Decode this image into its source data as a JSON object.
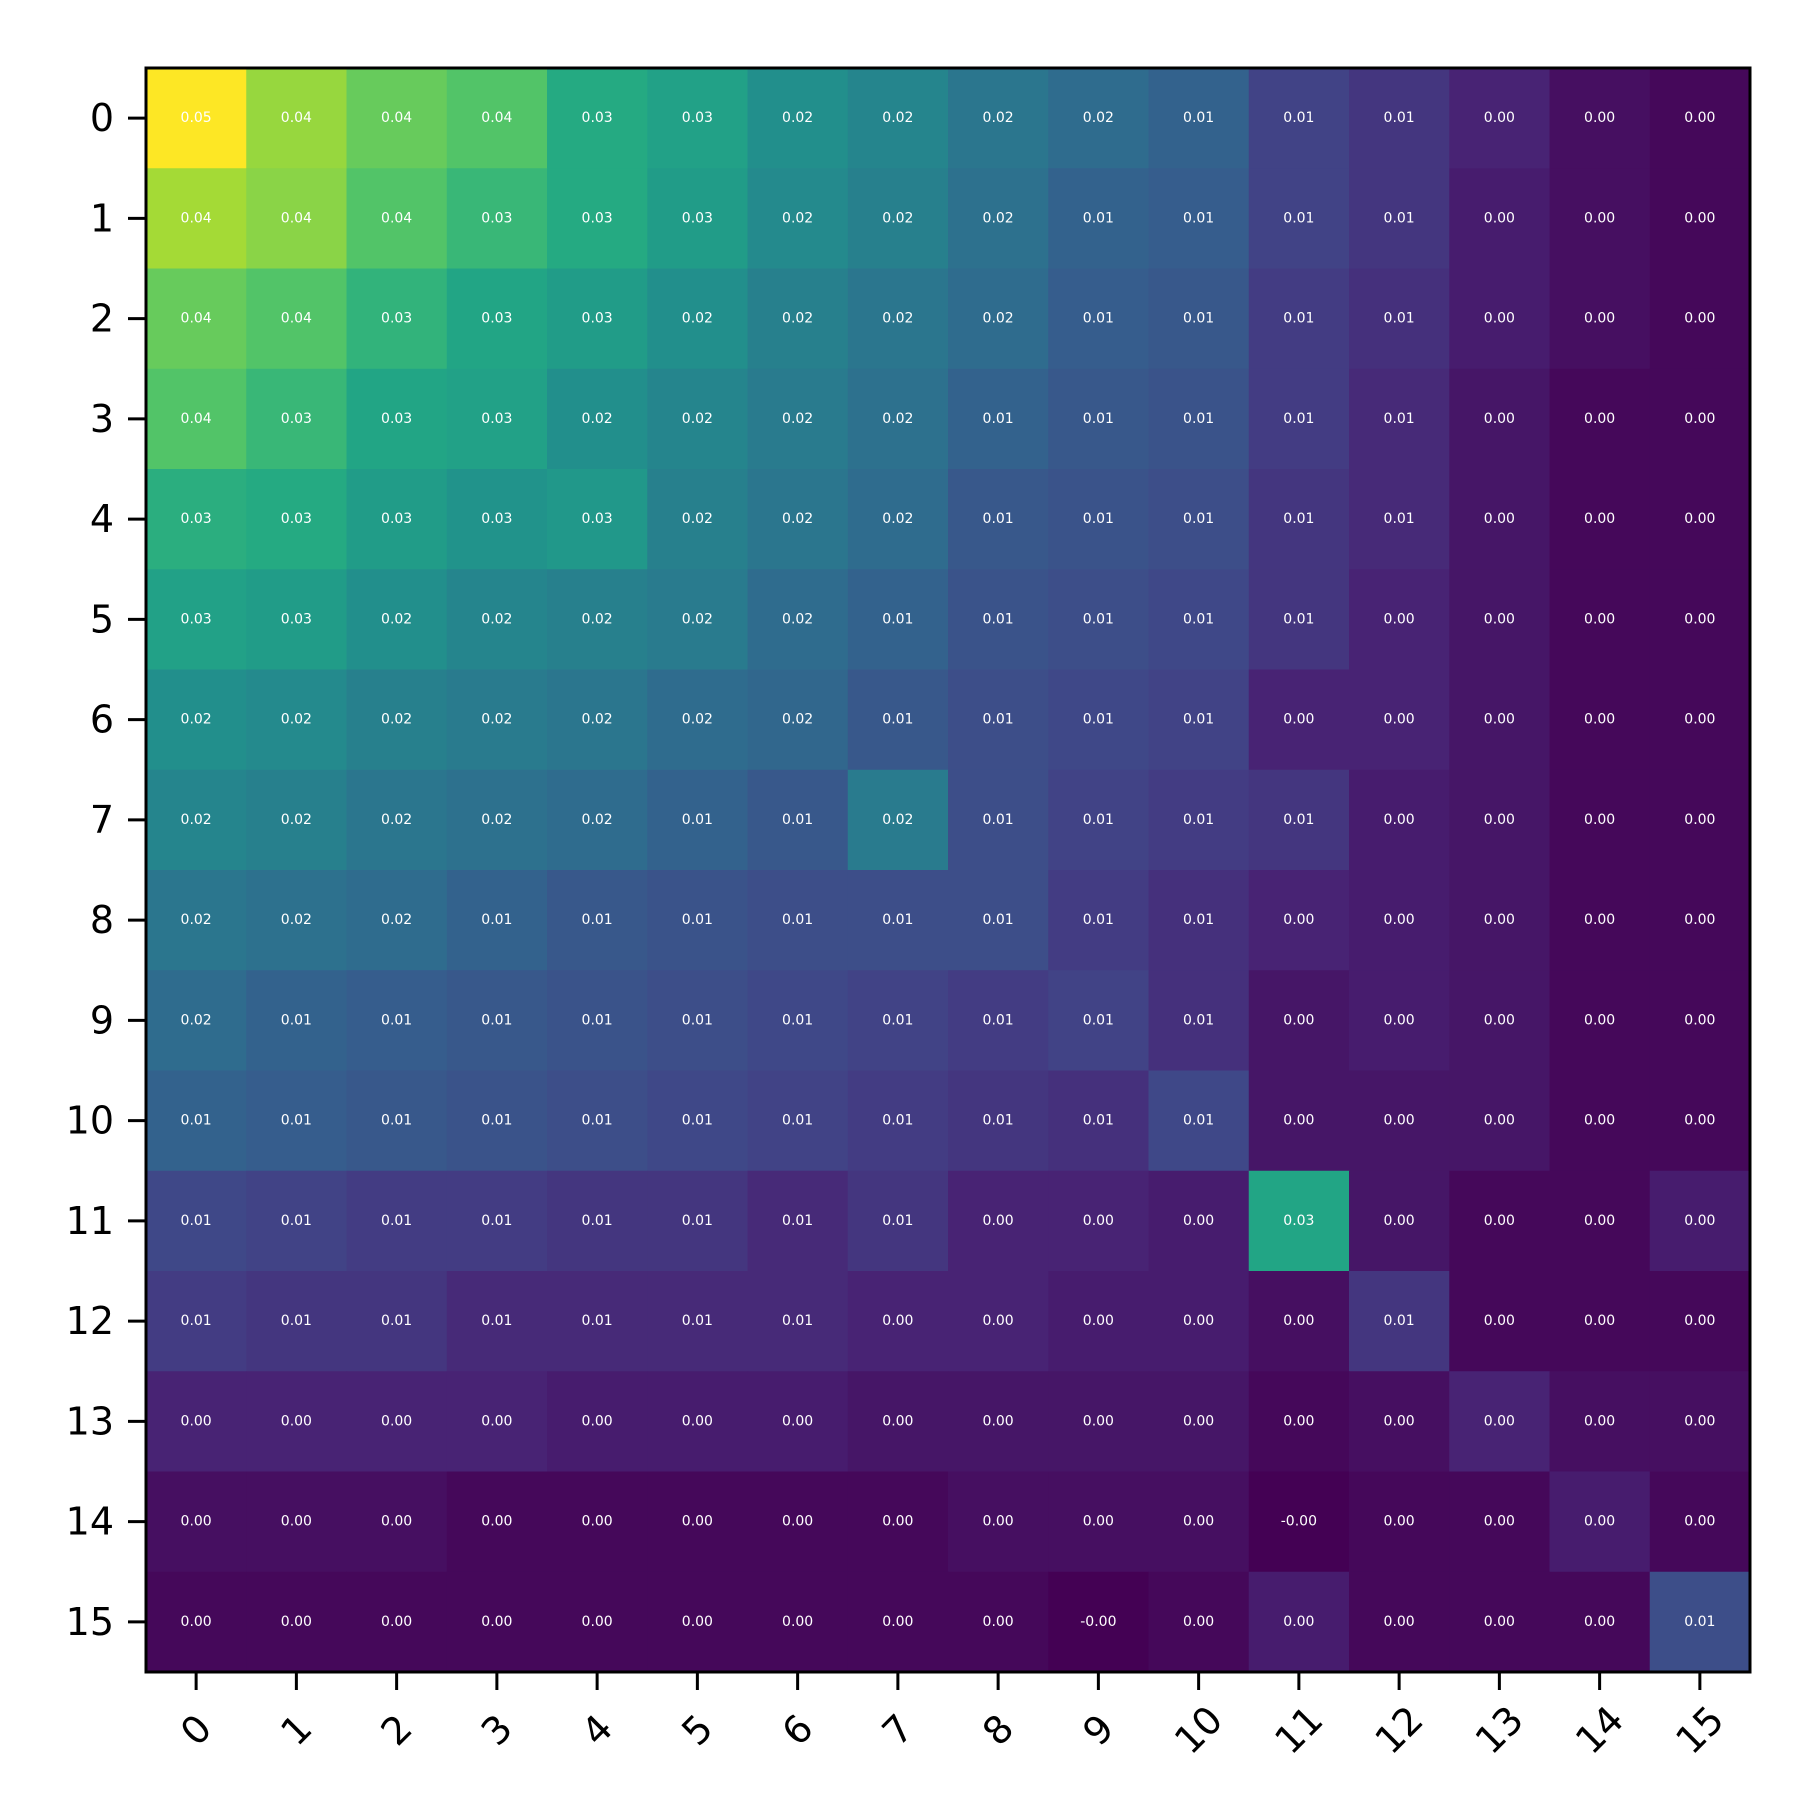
{
  "chart_data": {
    "type": "heatmap",
    "title": "",
    "xlabel": "",
    "ylabel": "",
    "colormap": "viridis",
    "color_range": [
      -0.001,
      0.05
    ],
    "colorbar": false,
    "grid": false,
    "x_labels": [
      "0",
      "1",
      "2",
      "3",
      "4",
      "5",
      "6",
      "7",
      "8",
      "9",
      "10",
      "11",
      "12",
      "13",
      "14",
      "15"
    ],
    "y_labels": [
      "0",
      "1",
      "2",
      "3",
      "4",
      "5",
      "6",
      "7",
      "8",
      "9",
      "10",
      "11",
      "12",
      "13",
      "14",
      "15"
    ],
    "values": [
      [
        0.05,
        0.042,
        0.038,
        0.036,
        0.03,
        0.028,
        0.024,
        0.022,
        0.019,
        0.017,
        0.015,
        0.009,
        0.007,
        0.004,
        0.001,
        -0.0
      ],
      [
        0.043,
        0.041,
        0.036,
        0.033,
        0.03,
        0.027,
        0.023,
        0.021,
        0.018,
        0.015,
        0.014,
        0.009,
        0.007,
        0.003,
        0.001,
        -0.0
      ],
      [
        0.038,
        0.036,
        0.032,
        0.029,
        0.027,
        0.024,
        0.021,
        0.019,
        0.017,
        0.014,
        0.013,
        0.008,
        0.006,
        0.003,
        0.001,
        -0.0
      ],
      [
        0.036,
        0.033,
        0.029,
        0.028,
        0.024,
        0.022,
        0.02,
        0.018,
        0.015,
        0.013,
        0.012,
        0.008,
        0.005,
        0.002,
        0.0,
        -0.0
      ],
      [
        0.031,
        0.03,
        0.027,
        0.025,
        0.026,
        0.021,
        0.019,
        0.017,
        0.013,
        0.012,
        0.011,
        0.007,
        0.005,
        0.002,
        0.0,
        -0.0
      ],
      [
        0.028,
        0.027,
        0.024,
        0.022,
        0.021,
        0.02,
        0.017,
        0.015,
        0.012,
        0.011,
        0.01,
        0.007,
        0.004,
        0.002,
        0.0,
        -0.0
      ],
      [
        0.024,
        0.023,
        0.021,
        0.02,
        0.019,
        0.017,
        0.016,
        0.013,
        0.011,
        0.01,
        0.009,
        0.004,
        0.004,
        0.002,
        0.0,
        -0.0
      ],
      [
        0.022,
        0.021,
        0.019,
        0.018,
        0.017,
        0.015,
        0.013,
        0.02,
        0.011,
        0.009,
        0.008,
        0.007,
        0.003,
        0.002,
        0.0,
        -0.0
      ],
      [
        0.019,
        0.018,
        0.017,
        0.015,
        0.013,
        0.012,
        0.011,
        0.011,
        0.011,
        0.008,
        0.006,
        0.004,
        0.003,
        0.002,
        0.0,
        -0.0
      ],
      [
        0.017,
        0.015,
        0.014,
        0.013,
        0.012,
        0.011,
        0.01,
        0.009,
        0.008,
        0.009,
        0.006,
        0.002,
        0.003,
        0.002,
        0.0,
        -0.0
      ],
      [
        0.015,
        0.014,
        0.013,
        0.012,
        0.011,
        0.01,
        0.009,
        0.008,
        0.007,
        0.006,
        0.01,
        0.002,
        0.002,
        0.002,
        0.0,
        -0.0
      ],
      [
        0.01,
        0.009,
        0.008,
        0.008,
        0.007,
        0.007,
        0.005,
        0.007,
        0.004,
        0.004,
        0.003,
        0.029,
        0.002,
        0.0,
        -0.0,
        0.003
      ],
      [
        0.008,
        0.007,
        0.007,
        0.005,
        0.005,
        0.005,
        0.005,
        0.004,
        0.004,
        0.003,
        0.003,
        0.001,
        0.007,
        0.0,
        -0.0,
        -0.0
      ],
      [
        0.004,
        0.004,
        0.004,
        0.004,
        0.003,
        0.003,
        0.003,
        0.002,
        0.002,
        0.002,
        0.002,
        -0.0,
        0.001,
        0.004,
        0.001,
        0.001
      ],
      [
        0.001,
        0.001,
        0.001,
        0.0,
        0.0,
        0.0,
        -0.0,
        0.0,
        0.001,
        0.001,
        0.001,
        -0.001,
        -0.0,
        0.0,
        0.003,
        -0.0
      ],
      [
        -0.0,
        -0.0,
        -0.0,
        -0.0,
        -0.0,
        -0.0,
        -0.0,
        -0.0,
        -0.0,
        -0.001,
        -0.0,
        0.003,
        -0.0,
        0.0,
        -0.0,
        0.011
      ]
    ]
  }
}
